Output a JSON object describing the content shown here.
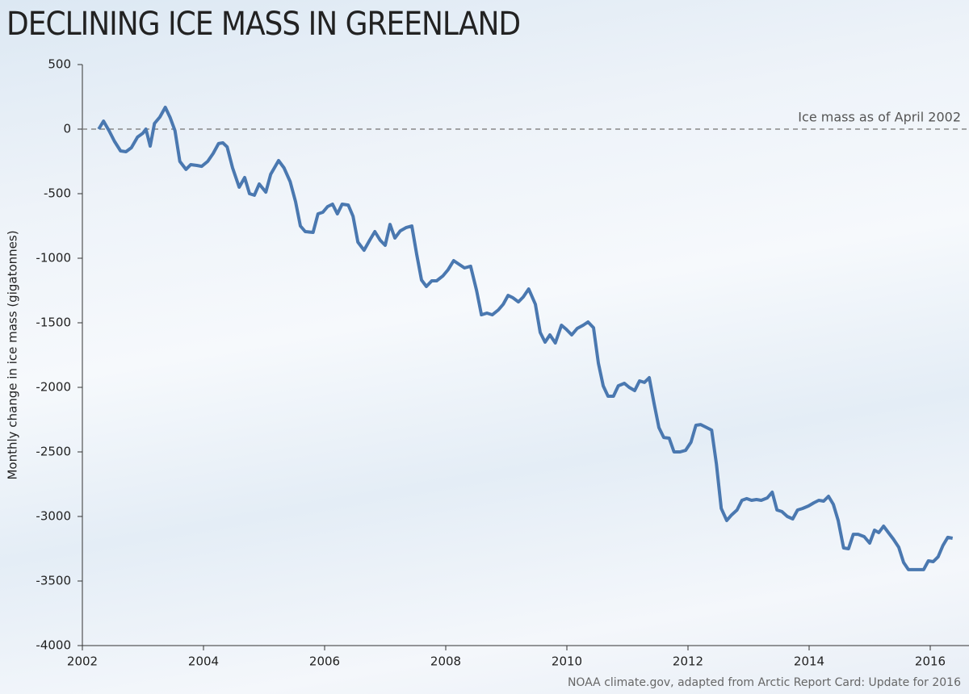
{
  "chart_data": {
    "type": "line",
    "title": "DECLINING ICE MASS IN GREENLAND",
    "y_label": "Monthly change in ice mass (gigatonnes)",
    "source": "NOAA climate.gov, adapted from Arctic Report Card: Update for 2016",
    "reference_line": {
      "value": 0,
      "label": "Ice mass as of April 2002"
    },
    "xlim": [
      2002,
      2016.64
    ],
    "xticks": [
      2002,
      2004,
      2006,
      2008,
      2010,
      2012,
      2014,
      2016
    ],
    "ylim": [
      -4000,
      500
    ],
    "yticks": [
      500,
      0,
      -500,
      -1000,
      -1500,
      -2000,
      -2500,
      -3000,
      -3500,
      -4000
    ],
    "x": [
      2002.27,
      2002.35,
      2002.44,
      2002.53,
      2002.63,
      2002.72,
      2002.81,
      2002.91,
      2003.0,
      2003.05,
      2003.12,
      2003.19,
      2003.28,
      2003.37,
      2003.45,
      2003.53,
      2003.61,
      2003.71,
      2003.79,
      2003.89,
      2003.97,
      2004.07,
      2004.16,
      2004.25,
      2004.32,
      2004.39,
      2004.48,
      2004.59,
      2004.68,
      2004.76,
      2004.84,
      2004.92,
      2005.03,
      2005.11,
      2005.24,
      2005.33,
      2005.43,
      2005.52,
      2005.6,
      2005.68,
      2005.81,
      2005.89,
      2005.97,
      2006.05,
      2006.13,
      2006.21,
      2006.29,
      2006.39,
      2006.47,
      2006.55,
      2006.65,
      2006.75,
      2006.83,
      2006.92,
      2007.0,
      2007.08,
      2007.16,
      2007.25,
      2007.35,
      2007.44,
      2007.52,
      2007.6,
      2007.68,
      2007.77,
      2007.85,
      2007.95,
      2008.04,
      2008.13,
      2008.23,
      2008.31,
      2008.41,
      2008.51,
      2008.59,
      2008.68,
      2008.77,
      2008.87,
      2008.95,
      2009.03,
      2009.11,
      2009.2,
      2009.28,
      2009.37,
      2009.48,
      2009.56,
      2009.64,
      2009.72,
      2009.81,
      2009.91,
      2009.99,
      2010.08,
      2010.17,
      2010.27,
      2010.35,
      2010.44,
      2010.52,
      2010.6,
      2010.68,
      2010.77,
      2010.85,
      2010.95,
      2011.03,
      2011.12,
      2011.2,
      2011.28,
      2011.36,
      2011.44,
      2011.52,
      2011.6,
      2011.69,
      2011.77,
      2011.87,
      2011.96,
      2012.05,
      2012.13,
      2012.21,
      2012.31,
      2012.39,
      2012.47,
      2012.55,
      2012.64,
      2012.72,
      2012.81,
      2012.89,
      2012.97,
      2013.05,
      2013.13,
      2013.21,
      2013.31,
      2013.39,
      2013.47,
      2013.55,
      2013.64,
      2013.73,
      2013.81,
      2013.89,
      2013.99,
      2014.08,
      2014.16,
      2014.24,
      2014.32,
      2014.4,
      2014.48,
      2014.57,
      2014.65,
      2014.73,
      2014.81,
      2014.91,
      2015.0,
      2015.08,
      2015.15,
      2015.23,
      2015.31,
      2015.39,
      2015.48,
      2015.56,
      2015.64,
      2015.72,
      2015.8,
      2015.89,
      2015.97,
      2016.05,
      2016.13,
      2016.21,
      2016.29,
      2016.37
    ],
    "series": [
      {
        "color": "#4a78b0",
        "values": [
          0,
          62,
          -12,
          -94,
          -169,
          -175,
          -144,
          -62,
          -31,
          0,
          -131,
          44,
          94,
          169,
          88,
          -12,
          -250,
          -312,
          -275,
          -281,
          -288,
          -250,
          -188,
          -112,
          -106,
          -138,
          -300,
          -450,
          -375,
          -500,
          -512,
          -425,
          -488,
          -350,
          -244,
          -300,
          -406,
          -562,
          -750,
          -794,
          -800,
          -656,
          -644,
          -600,
          -581,
          -656,
          -581,
          -588,
          -675,
          -875,
          -938,
          -856,
          -794,
          -862,
          -900,
          -738,
          -844,
          -788,
          -762,
          -750,
          -969,
          -1169,
          -1219,
          -1175,
          -1175,
          -1138,
          -1088,
          -1019,
          -1050,
          -1075,
          -1062,
          -1250,
          -1438,
          -1425,
          -1438,
          -1400,
          -1356,
          -1288,
          -1306,
          -1338,
          -1300,
          -1238,
          -1356,
          -1575,
          -1650,
          -1594,
          -1656,
          -1519,
          -1550,
          -1594,
          -1544,
          -1519,
          -1494,
          -1538,
          -1812,
          -1988,
          -2069,
          -2069,
          -1988,
          -1969,
          -2000,
          -2025,
          -1950,
          -1962,
          -1925,
          -2125,
          -2312,
          -2388,
          -2394,
          -2500,
          -2500,
          -2488,
          -2425,
          -2294,
          -2288,
          -2312,
          -2331,
          -2594,
          -2938,
          -3031,
          -2988,
          -2950,
          -2875,
          -2862,
          -2875,
          -2869,
          -2875,
          -2856,
          -2812,
          -2950,
          -2962,
          -3000,
          -3019,
          -2950,
          -2938,
          -2919,
          -2894,
          -2875,
          -2881,
          -2844,
          -2906,
          -3031,
          -3244,
          -3250,
          -3138,
          -3138,
          -3156,
          -3206,
          -3106,
          -3125,
          -3075,
          -3125,
          -3175,
          -3238,
          -3356,
          -3412,
          -3412,
          -3412,
          -3412,
          -3344,
          -3350,
          -3312,
          -3225,
          -3162,
          -3169
        ]
      }
    ]
  }
}
